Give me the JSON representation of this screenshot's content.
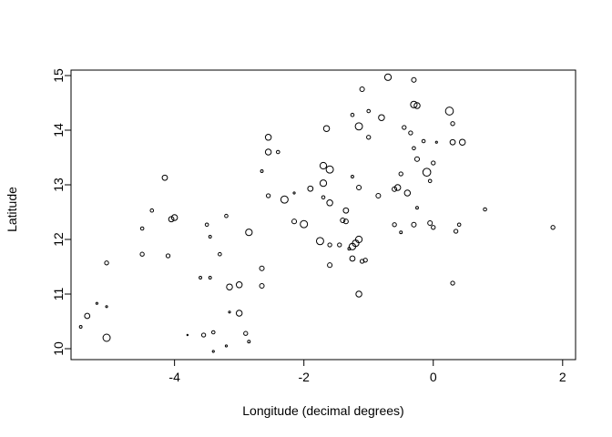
{
  "chart_data": {
    "type": "scatter",
    "title": "",
    "xlabel": "Longitude (decimal degrees)",
    "ylabel": "Latitude",
    "xlim": [
      -5.6,
      2.2
    ],
    "ylim": [
      9.8,
      15.1
    ],
    "x_ticks": [
      -4,
      -2,
      0,
      2
    ],
    "y_ticks": [
      10,
      11,
      12,
      13,
      14,
      15
    ],
    "x_tick_labels": [
      "-4",
      "-2",
      "0",
      "2"
    ],
    "y_tick_labels": [
      "10",
      "11",
      "12",
      "13",
      "14",
      "15"
    ],
    "grid": false,
    "legend": "none",
    "marker": "open circle",
    "marker_color": "#000000",
    "size_note": "point size varies",
    "points": [
      {
        "x": -0.7,
        "y": 14.97,
        "s": 1.0
      },
      {
        "x": -0.3,
        "y": 14.92,
        "s": 0.7
      },
      {
        "x": -1.1,
        "y": 14.75,
        "s": 0.7
      },
      {
        "x": -0.3,
        "y": 14.47,
        "s": 1.0
      },
      {
        "x": -0.25,
        "y": 14.45,
        "s": 0.9
      },
      {
        "x": 0.25,
        "y": 14.35,
        "s": 1.2
      },
      {
        "x": -1.25,
        "y": 14.28,
        "s": 0.5
      },
      {
        "x": -1.0,
        "y": 14.35,
        "s": 0.5
      },
      {
        "x": -0.8,
        "y": 14.23,
        "s": 0.9
      },
      {
        "x": 0.3,
        "y": 14.12,
        "s": 0.6
      },
      {
        "x": -1.65,
        "y": 14.03,
        "s": 0.9
      },
      {
        "x": -1.15,
        "y": 14.07,
        "s": 1.1
      },
      {
        "x": -0.45,
        "y": 14.05,
        "s": 0.6
      },
      {
        "x": -0.35,
        "y": 13.95,
        "s": 0.6
      },
      {
        "x": -2.55,
        "y": 13.87,
        "s": 0.9
      },
      {
        "x": -1.0,
        "y": 13.87,
        "s": 0.6
      },
      {
        "x": -0.15,
        "y": 13.8,
        "s": 0.5
      },
      {
        "x": 0.05,
        "y": 13.78,
        "s": 0.3
      },
      {
        "x": 0.3,
        "y": 13.78,
        "s": 0.8
      },
      {
        "x": 0.45,
        "y": 13.78,
        "s": 0.9
      },
      {
        "x": -0.3,
        "y": 13.67,
        "s": 0.5
      },
      {
        "x": -2.55,
        "y": 13.6,
        "s": 0.9
      },
      {
        "x": -2.4,
        "y": 13.6,
        "s": 0.5
      },
      {
        "x": -0.25,
        "y": 13.47,
        "s": 0.7
      },
      {
        "x": 0.0,
        "y": 13.4,
        "s": 0.6
      },
      {
        "x": -1.7,
        "y": 13.35,
        "s": 1.0
      },
      {
        "x": -1.6,
        "y": 13.28,
        "s": 1.1
      },
      {
        "x": -2.65,
        "y": 13.25,
        "s": 0.4
      },
      {
        "x": -0.5,
        "y": 13.2,
        "s": 0.6
      },
      {
        "x": -0.1,
        "y": 13.23,
        "s": 1.2
      },
      {
        "x": -1.25,
        "y": 13.15,
        "s": 0.4
      },
      {
        "x": -4.15,
        "y": 13.13,
        "s": 0.8
      },
      {
        "x": -0.05,
        "y": 13.07,
        "s": 0.5
      },
      {
        "x": -1.7,
        "y": 13.03,
        "s": 1.0
      },
      {
        "x": -1.9,
        "y": 12.93,
        "s": 0.8
      },
      {
        "x": -1.15,
        "y": 12.95,
        "s": 0.7
      },
      {
        "x": -0.55,
        "y": 12.95,
        "s": 0.9
      },
      {
        "x": -0.6,
        "y": 12.92,
        "s": 0.7
      },
      {
        "x": -0.4,
        "y": 12.85,
        "s": 0.9
      },
      {
        "x": -2.55,
        "y": 12.8,
        "s": 0.6
      },
      {
        "x": -2.15,
        "y": 12.85,
        "s": 0.3
      },
      {
        "x": -1.7,
        "y": 12.77,
        "s": 0.5
      },
      {
        "x": -0.85,
        "y": 12.8,
        "s": 0.7
      },
      {
        "x": -2.3,
        "y": 12.73,
        "s": 1.1
      },
      {
        "x": -1.6,
        "y": 12.67,
        "s": 0.9
      },
      {
        "x": -1.35,
        "y": 12.53,
        "s": 0.8
      },
      {
        "x": 0.8,
        "y": 12.55,
        "s": 0.5
      },
      {
        "x": -0.25,
        "y": 12.58,
        "s": 0.4
      },
      {
        "x": -4.35,
        "y": 12.53,
        "s": 0.5
      },
      {
        "x": -3.2,
        "y": 12.43,
        "s": 0.5
      },
      {
        "x": -4.0,
        "y": 12.4,
        "s": 0.9
      },
      {
        "x": -4.05,
        "y": 12.37,
        "s": 0.8
      },
      {
        "x": -1.4,
        "y": 12.35,
        "s": 0.7
      },
      {
        "x": -1.35,
        "y": 12.33,
        "s": 0.7
      },
      {
        "x": -2.15,
        "y": 12.33,
        "s": 0.7
      },
      {
        "x": -2.0,
        "y": 12.28,
        "s": 1.1
      },
      {
        "x": -3.5,
        "y": 12.27,
        "s": 0.5
      },
      {
        "x": -0.6,
        "y": 12.27,
        "s": 0.6
      },
      {
        "x": -0.3,
        "y": 12.27,
        "s": 0.7
      },
      {
        "x": -0.05,
        "y": 12.3,
        "s": 0.7
      },
      {
        "x": 0.0,
        "y": 12.22,
        "s": 0.6
      },
      {
        "x": 0.4,
        "y": 12.27,
        "s": 0.5
      },
      {
        "x": 0.35,
        "y": 12.15,
        "s": 0.6
      },
      {
        "x": -4.5,
        "y": 12.2,
        "s": 0.5
      },
      {
        "x": -2.85,
        "y": 12.13,
        "s": 1.0
      },
      {
        "x": -0.5,
        "y": 12.13,
        "s": 0.4
      },
      {
        "x": -3.45,
        "y": 12.05,
        "s": 0.4
      },
      {
        "x": -1.75,
        "y": 11.97,
        "s": 1.1
      },
      {
        "x": -1.15,
        "y": 12.0,
        "s": 1.0
      },
      {
        "x": -1.2,
        "y": 11.93,
        "s": 1.0
      },
      {
        "x": -1.6,
        "y": 11.9,
        "s": 0.6
      },
      {
        "x": -1.45,
        "y": 11.9,
        "s": 0.6
      },
      {
        "x": -1.3,
        "y": 11.83,
        "s": 0.4
      },
      {
        "x": -1.25,
        "y": 11.87,
        "s": 1.0
      },
      {
        "x": 1.85,
        "y": 12.22,
        "s": 0.6
      },
      {
        "x": -3.3,
        "y": 11.73,
        "s": 0.5
      },
      {
        "x": -4.5,
        "y": 11.73,
        "s": 0.6
      },
      {
        "x": -4.1,
        "y": 11.7,
        "s": 0.6
      },
      {
        "x": -1.25,
        "y": 11.65,
        "s": 0.8
      },
      {
        "x": -1.05,
        "y": 11.62,
        "s": 0.6
      },
      {
        "x": -1.1,
        "y": 11.6,
        "s": 0.6
      },
      {
        "x": -5.05,
        "y": 11.57,
        "s": 0.6
      },
      {
        "x": -1.6,
        "y": 11.53,
        "s": 0.7
      },
      {
        "x": -2.65,
        "y": 11.47,
        "s": 0.7
      },
      {
        "x": -3.6,
        "y": 11.3,
        "s": 0.4
      },
      {
        "x": -3.45,
        "y": 11.3,
        "s": 0.4
      },
      {
        "x": -3.15,
        "y": 11.13,
        "s": 0.9
      },
      {
        "x": -3.0,
        "y": 11.17,
        "s": 0.9
      },
      {
        "x": -2.65,
        "y": 11.15,
        "s": 0.7
      },
      {
        "x": 0.3,
        "y": 11.2,
        "s": 0.6
      },
      {
        "x": -1.15,
        "y": 11.0,
        "s": 0.9
      },
      {
        "x": -5.2,
        "y": 10.83,
        "s": 0.3
      },
      {
        "x": -5.05,
        "y": 10.77,
        "s": 0.3
      },
      {
        "x": -5.35,
        "y": 10.6,
        "s": 0.8
      },
      {
        "x": -3.0,
        "y": 10.65,
        "s": 0.9
      },
      {
        "x": -3.15,
        "y": 10.67,
        "s": 0.3
      },
      {
        "x": -5.45,
        "y": 10.4,
        "s": 0.4
      },
      {
        "x": -3.4,
        "y": 10.3,
        "s": 0.5
      },
      {
        "x": -2.9,
        "y": 10.28,
        "s": 0.6
      },
      {
        "x": -3.55,
        "y": 10.25,
        "s": 0.6
      },
      {
        "x": -5.05,
        "y": 10.2,
        "s": 1.1
      },
      {
        "x": -3.8,
        "y": 10.25,
        "s": 0.2
      },
      {
        "x": -2.85,
        "y": 10.13,
        "s": 0.4
      },
      {
        "x": -3.2,
        "y": 10.05,
        "s": 0.3
      },
      {
        "x": -3.4,
        "y": 9.95,
        "s": 0.3
      }
    ]
  }
}
